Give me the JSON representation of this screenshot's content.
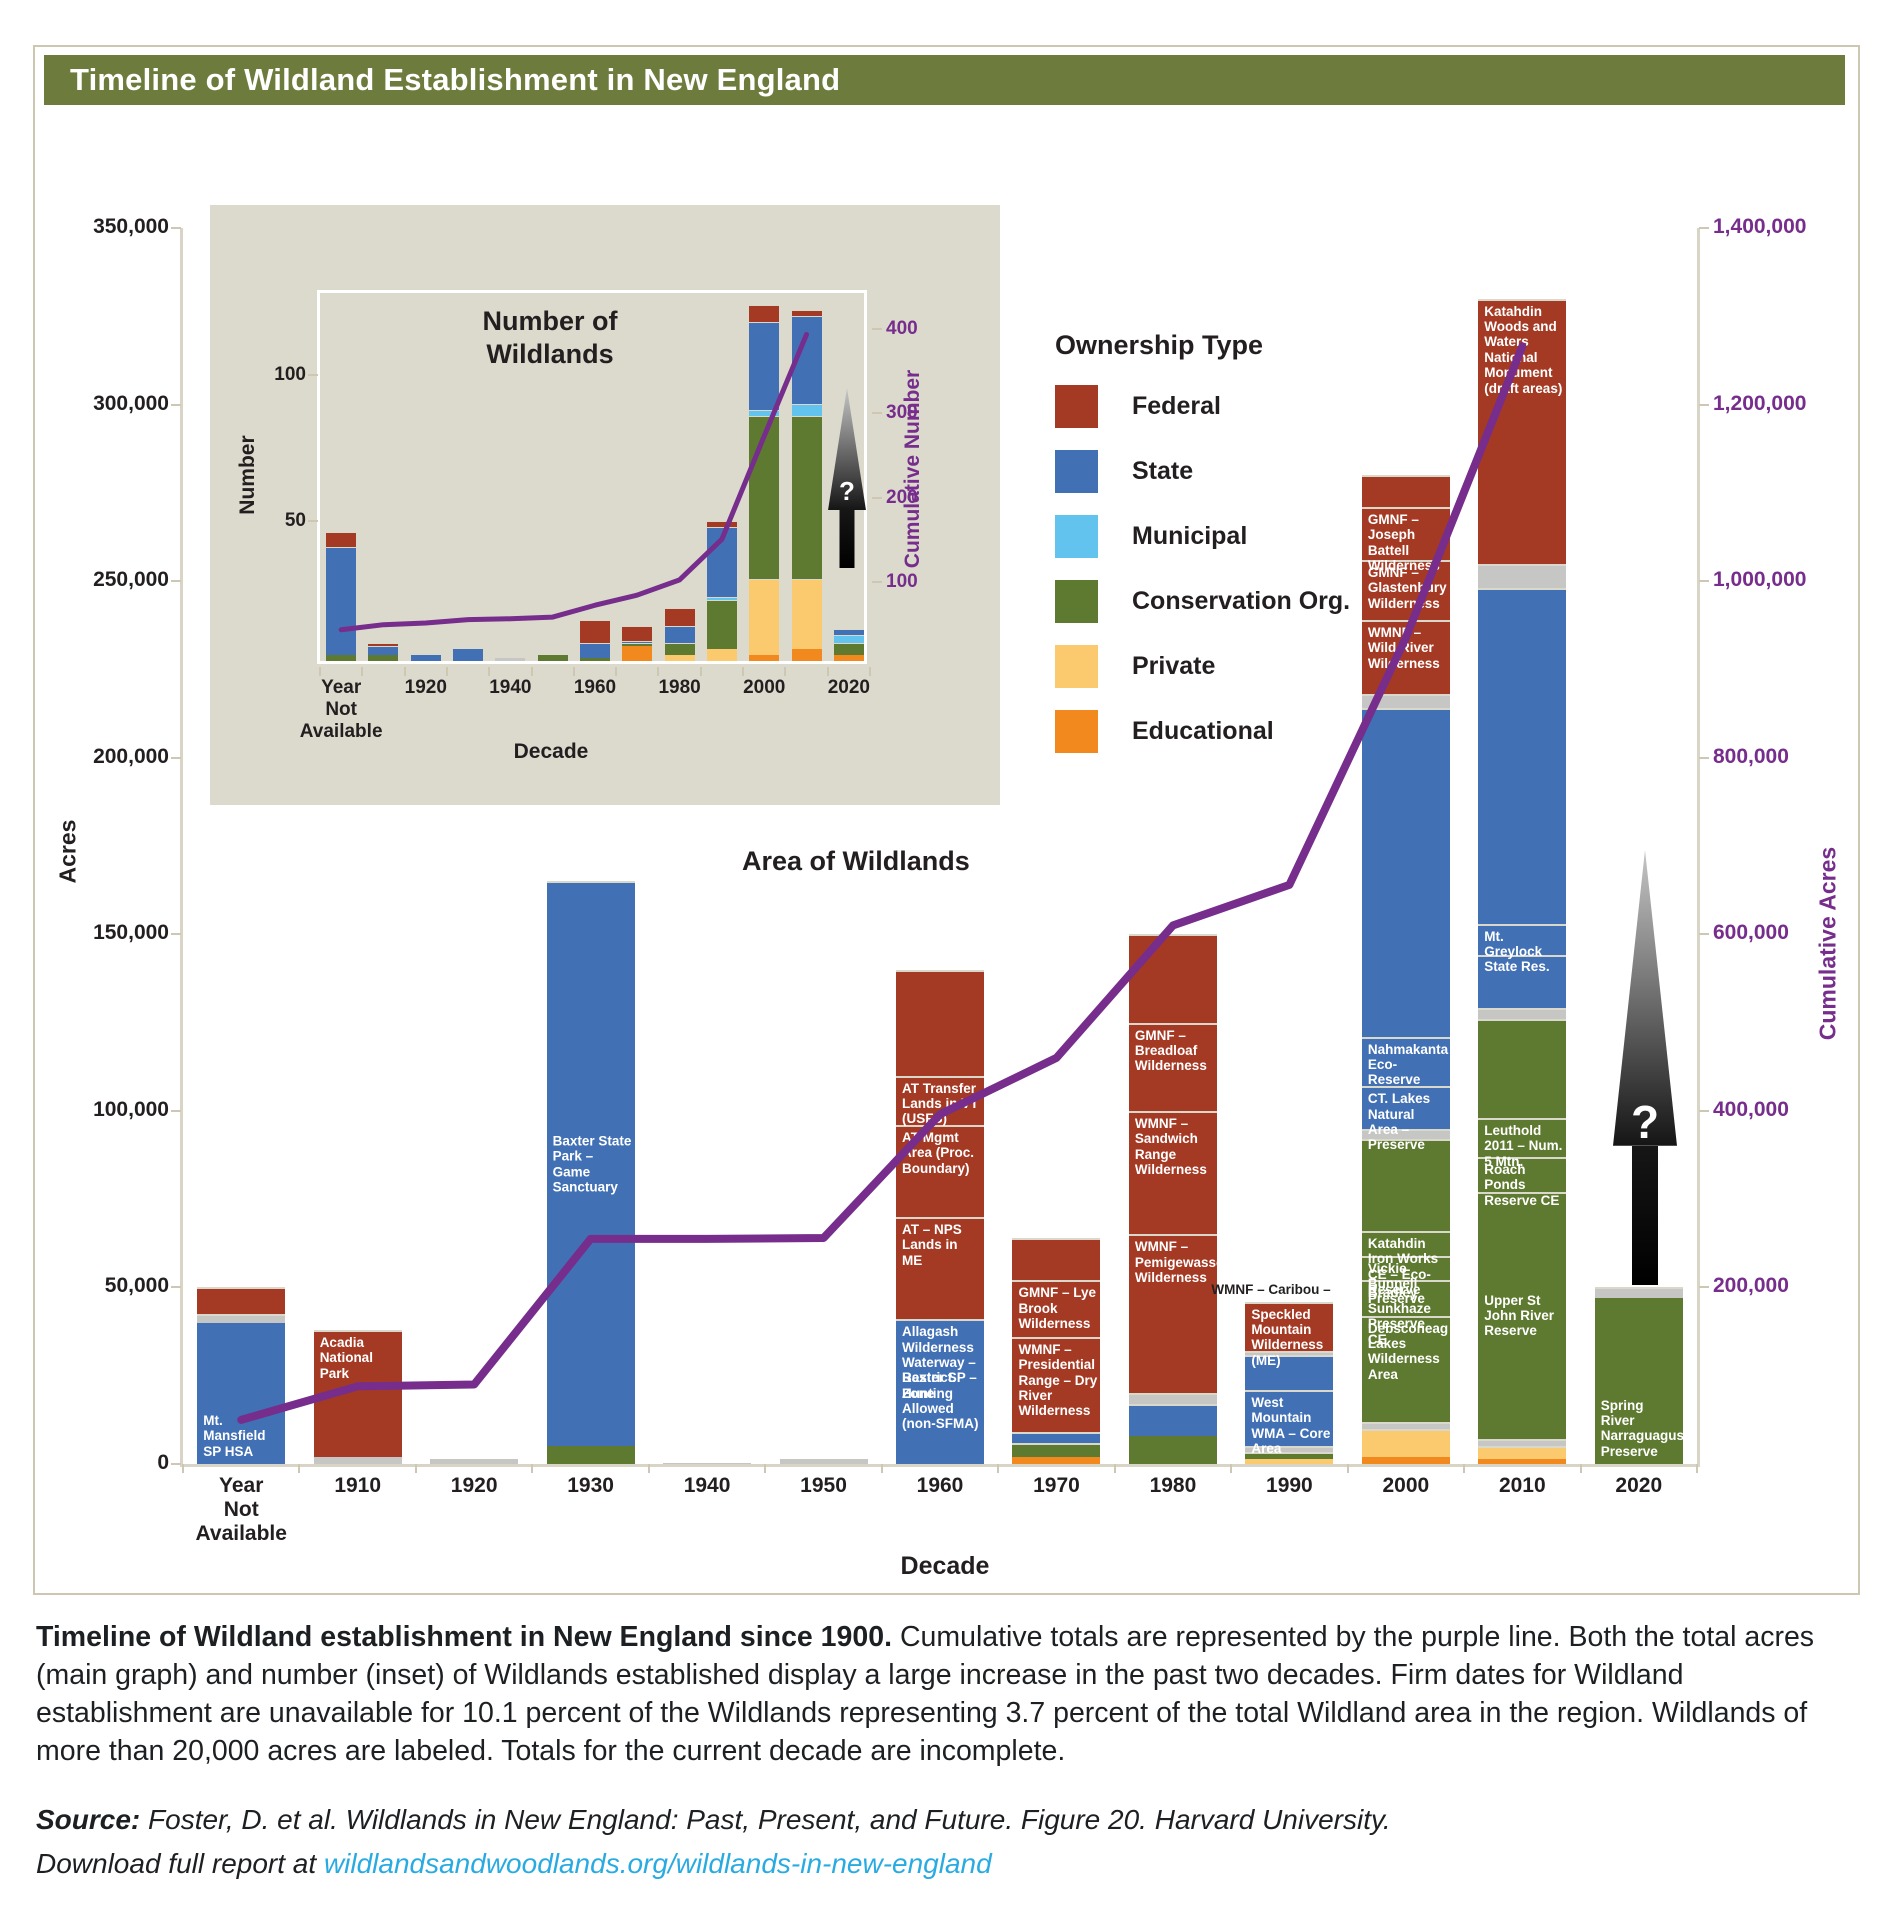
{
  "header": {
    "title": "Timeline of Wildland Establishment in New England"
  },
  "legend": {
    "title": "Ownership Type",
    "items": [
      {
        "key": "federal",
        "label": "Federal"
      },
      {
        "key": "state",
        "label": "State"
      },
      {
        "key": "municipal",
        "label": "Municipal"
      },
      {
        "key": "conservation",
        "label": "Conservation Org."
      },
      {
        "key": "private",
        "label": "Private"
      },
      {
        "key": "educational",
        "label": "Educational"
      }
    ]
  },
  "colors": {
    "federal": "#a53a24",
    "state": "#4270b4",
    "municipal": "#62c3ee",
    "conservation": "#5e7a30",
    "private": "#fbca6e",
    "educational": "#f1891f",
    "other": "#c6c6c4",
    "line": "#762d8c",
    "title_bar": "#6d7c3d",
    "link": "#29abe2"
  },
  "arrow_label": "?",
  "chart_data": [
    {
      "id": "main",
      "type": "bar",
      "variant": "stacked-with-cumulative-line",
      "title": "Area of Wildlands",
      "xlabel": "Decade",
      "ylabel": "Acres",
      "y2label": "Cumulative Acres",
      "ylim": [
        0,
        350000
      ],
      "y2lim": [
        0,
        1400000
      ],
      "yticks": [
        0,
        50000,
        100000,
        150000,
        200000,
        250000,
        300000,
        350000
      ],
      "y2ticks": [
        200000,
        400000,
        600000,
        800000,
        1000000,
        1200000,
        1400000
      ],
      "categories": [
        "Year\nNot\nAvailable",
        "1910",
        "1920",
        "1930",
        "1940",
        "1950",
        "1960",
        "1970",
        "1980",
        "1990",
        "2000",
        "2010",
        "2020"
      ],
      "cumulative_line": [
        50000,
        88000,
        90000,
        255000,
        255000,
        256000,
        396000,
        460000,
        610000,
        656000,
        936000,
        1266000,
        null
      ],
      "bars": [
        {
          "segments": [
            {
              "t": "state",
              "v": 40000,
              "l": "Mt. Mansfield SP HSA",
              "p": "bottom",
              "s": 1
            },
            {
              "t": "other",
              "v": 2500
            },
            {
              "t": "federal",
              "v": 7500,
              "s": 1
            }
          ]
        },
        {
          "segments": [
            {
              "t": "other",
              "v": 2000
            },
            {
              "t": "federal",
              "v": 36000,
              "l": "Acadia National Park"
            }
          ]
        },
        {
          "segments": [
            {
              "t": "other",
              "v": 1500
            }
          ]
        },
        {
          "segments": [
            {
              "t": "conservation",
              "v": 5000
            },
            {
              "t": "state",
              "v": 160000,
              "l": "Baxter State Park – Game Sanctuary",
              "p": "middle"
            }
          ]
        },
        {
          "segments": [
            {
              "t": "other",
              "v": 400
            }
          ]
        },
        {
          "segments": [
            {
              "t": "other",
              "v": 1300
            }
          ]
        },
        {
          "segments": [
            {
              "t": "state",
              "v": 28000,
              "l": "Baxter SP – Hunting Allowed (non-SFMA)"
            },
            {
              "t": "state",
              "v": 13000,
              "l": "Allagash Wilderness Waterway – Restrict. Zone"
            },
            {
              "t": "federal",
              "v": 29000,
              "l": "AT – NPS Lands in ME"
            },
            {
              "t": "federal",
              "v": 26000,
              "l": "AT Mgmt Area (Proc. Boundary)"
            },
            {
              "t": "federal",
              "v": 14000,
              "l": "AT Transfer Lands in VT (USFS)"
            },
            {
              "t": "federal",
              "v": 30000,
              "s": 1
            }
          ]
        },
        {
          "segments": [
            {
              "t": "educational",
              "v": 2000
            },
            {
              "t": "conservation",
              "v": 4000
            },
            {
              "t": "state",
              "v": 3000
            },
            {
              "t": "federal",
              "v": 27000,
              "l": "WMNF – Presidential Range – Dry River Wilderness"
            },
            {
              "t": "federal",
              "v": 16000,
              "l": "GMNF – Lye Brook Wilderness"
            },
            {
              "t": "federal",
              "v": 12000,
              "s": 1
            }
          ]
        },
        {
          "segments": [
            {
              "t": "conservation",
              "v": 8000,
              "s": 1
            },
            {
              "t": "state",
              "v": 9000
            },
            {
              "t": "other",
              "v": 3000
            },
            {
              "t": "federal",
              "v": 45000,
              "l": "WMNF – Pemigewasset Wilderness"
            },
            {
              "t": "federal",
              "v": 35000,
              "l": "WMNF – Sandwich Range Wilderness"
            },
            {
              "t": "federal",
              "v": 25000,
              "l": "GMNF – Breadloaf Wilderness"
            },
            {
              "t": "federal",
              "v": 25000,
              "s": 1
            }
          ]
        },
        {
          "toplabel": "WMNF – Caribou –",
          "segments": [
            {
              "t": "private",
              "v": 1500
            },
            {
              "t": "conservation",
              "v": 2000,
              "s": 1
            },
            {
              "t": "other",
              "v": 1500
            },
            {
              "t": "state",
              "v": 16000,
              "l": "West Mountain WMA – Core Area"
            },
            {
              "t": "state",
              "v": 10000,
              "s": 1
            },
            {
              "t": "other",
              "v": 1000
            },
            {
              "t": "federal",
              "v": 14000,
              "l": "Speckled Mountain Wilderness (ME)"
            }
          ]
        },
        {
          "segments": [
            {
              "t": "educational",
              "v": 2000
            },
            {
              "t": "private",
              "v": 8000
            },
            {
              "t": "other",
              "v": 2000
            },
            {
              "t": "conservation",
              "v": 30000,
              "l": "Debsconeag Lakes Wilderness Area"
            },
            {
              "t": "conservation",
              "v": 10000,
              "l": "Bradley Sunkhaze Preserve CE"
            },
            {
              "t": "conservation",
              "v": 7000,
              "l": "Vickie Bunnell Preserve"
            },
            {
              "t": "conservation",
              "v": 7000,
              "l": "Katahdin Iron Works CE – Eco-Reserve"
            },
            {
              "t": "conservation",
              "v": 26000,
              "s": 1
            },
            {
              "t": "other",
              "v": 3000
            },
            {
              "t": "state",
              "v": 12000,
              "l": "CT. Lakes Natural Area – Preserve"
            },
            {
              "t": "state",
              "v": 14000,
              "l": "Nahmakanta Eco-Reserve"
            },
            {
              "t": "state",
              "v": 93000,
              "s": 1
            },
            {
              "t": "other",
              "v": 4000
            },
            {
              "t": "federal",
              "v": 21000,
              "l": "WMNF – Wild River Wilderness"
            },
            {
              "t": "federal",
              "v": 17000,
              "l": "GMNF – Glastenbury Wilderness"
            },
            {
              "t": "federal",
              "v": 15000,
              "l": "GMNF – Joseph Battell Wilderness"
            },
            {
              "t": "federal",
              "v": 9000,
              "s": 1
            }
          ]
        },
        {
          "segments": [
            {
              "t": "educational",
              "v": 1500
            },
            {
              "t": "private",
              "v": 3500
            },
            {
              "t": "other",
              "v": 2000
            },
            {
              "t": "conservation",
              "v": 70000,
              "l": "Upper St John River Reserve",
              "p": "middle"
            },
            {
              "t": "conservation",
              "v": 10000,
              "l": "Roach Ponds Reserve CE"
            },
            {
              "t": "conservation",
              "v": 11000,
              "l": "Leuthold 2011 – Num. 5 Mtn."
            },
            {
              "t": "conservation",
              "v": 28000,
              "s": 1
            },
            {
              "t": "other",
              "v": 3000
            },
            {
              "t": "state",
              "v": 15000,
              "s": 1
            },
            {
              "t": "state",
              "v": 9000,
              "l": "Mt. Greylock State Res."
            },
            {
              "t": "state",
              "v": 95000,
              "s": 1
            },
            {
              "t": "other",
              "v": 7000
            },
            {
              "t": "federal",
              "v": 75000,
              "l": "Katahdin Woods and Waters National Monument (draft areas)"
            }
          ]
        },
        {
          "segments": [
            {
              "t": "conservation",
              "v": 47000,
              "l": "Spring River Narraguagus Preserve",
              "p": "bottom",
              "s": 1
            },
            {
              "t": "other",
              "v": 3000
            }
          ]
        }
      ]
    },
    {
      "id": "inset",
      "type": "bar",
      "variant": "stacked-with-cumulative-line",
      "title": "Number of Wildlands",
      "xlabel": "Decade",
      "ylabel": "Number",
      "y2label": "Cumulative Number",
      "ylim": [
        0,
        128
      ],
      "y2lim": [
        0,
        442
      ],
      "yticks": [
        50,
        100
      ],
      "y2ticks": [
        100,
        200,
        300,
        400
      ],
      "categories": [
        "Year\nNot\nAvailable",
        "1910",
        "1920",
        "1930",
        "1940",
        "1950",
        "1960",
        "1970",
        "1980",
        "1990",
        "2000",
        "2010",
        "2020"
      ],
      "xtick_indices": [
        0,
        2,
        4,
        6,
        8,
        10,
        12
      ],
      "cumulative_line": [
        44,
        50,
        52,
        56,
        57,
        59,
        73,
        85,
        103,
        151,
        273,
        393,
        null
      ],
      "bars": [
        {
          "segments": [
            {
              "t": "conservation",
              "v": 2
            },
            {
              "t": "state",
              "v": 37
            },
            {
              "t": "federal",
              "v": 5
            }
          ]
        },
        {
          "segments": [
            {
              "t": "conservation",
              "v": 2
            },
            {
              "t": "state",
              "v": 3
            },
            {
              "t": "federal",
              "v": 1
            }
          ]
        },
        {
          "segments": [
            {
              "t": "state",
              "v": 2
            }
          ]
        },
        {
          "segments": [
            {
              "t": "state",
              "v": 4
            }
          ]
        },
        {
          "segments": [
            {
              "t": "other",
              "v": 1
            }
          ]
        },
        {
          "segments": [
            {
              "t": "conservation",
              "v": 2
            }
          ]
        },
        {
          "segments": [
            {
              "t": "conservation",
              "v": 1
            },
            {
              "t": "state",
              "v": 5
            },
            {
              "t": "federal",
              "v": 8
            }
          ]
        },
        {
          "segments": [
            {
              "t": "educational",
              "v": 5
            },
            {
              "t": "conservation",
              "v": 1
            },
            {
              "t": "state",
              "v": 1
            },
            {
              "t": "federal",
              "v": 5
            }
          ]
        },
        {
          "segments": [
            {
              "t": "private",
              "v": 2
            },
            {
              "t": "conservation",
              "v": 4
            },
            {
              "t": "state",
              "v": 6
            },
            {
              "t": "federal",
              "v": 6
            }
          ]
        },
        {
          "segments": [
            {
              "t": "private",
              "v": 4
            },
            {
              "t": "conservation",
              "v": 17
            },
            {
              "t": "municipal",
              "v": 1
            },
            {
              "t": "state",
              "v": 24
            },
            {
              "t": "federal",
              "v": 2
            }
          ]
        },
        {
          "segments": [
            {
              "t": "educational",
              "v": 2
            },
            {
              "t": "private",
              "v": 26
            },
            {
              "t": "conservation",
              "v": 56
            },
            {
              "t": "municipal",
              "v": 2
            },
            {
              "t": "state",
              "v": 30
            },
            {
              "t": "federal",
              "v": 6
            }
          ]
        },
        {
          "segments": [
            {
              "t": "educational",
              "v": 4
            },
            {
              "t": "private",
              "v": 24
            },
            {
              "t": "conservation",
              "v": 56
            },
            {
              "t": "municipal",
              "v": 4
            },
            {
              "t": "state",
              "v": 30
            },
            {
              "t": "federal",
              "v": 2
            }
          ]
        },
        {
          "segments": [
            {
              "t": "educational",
              "v": 2
            },
            {
              "t": "conservation",
              "v": 4
            },
            {
              "t": "municipal",
              "v": 3
            },
            {
              "t": "state",
              "v": 2
            }
          ]
        }
      ]
    }
  ],
  "caption": {
    "lead": "Timeline of Wildland establishment in New England since 1900.",
    "body": "Cumulative totals are represented by the purple line. Both the total acres (main graph) and number (inset) of Wildlands established display a large increase in the past two decades. Firm dates for Wildland establishment are unavailable for 10.1 percent of the Wildlands representing 3.7 percent of the total Wildland area in the region. Wildlands of more than 20,000 acres are labeled. Totals for the current decade are incomplete."
  },
  "source": {
    "label": "Source:",
    "citation": "Foster, D. et al. Wildlands in New England: Past, Present, and Future. Figure 20. Harvard University.",
    "download_prefix": "Download full report at",
    "link": "wildlandsandwoodlands.org/wildlands-in-new-england"
  }
}
